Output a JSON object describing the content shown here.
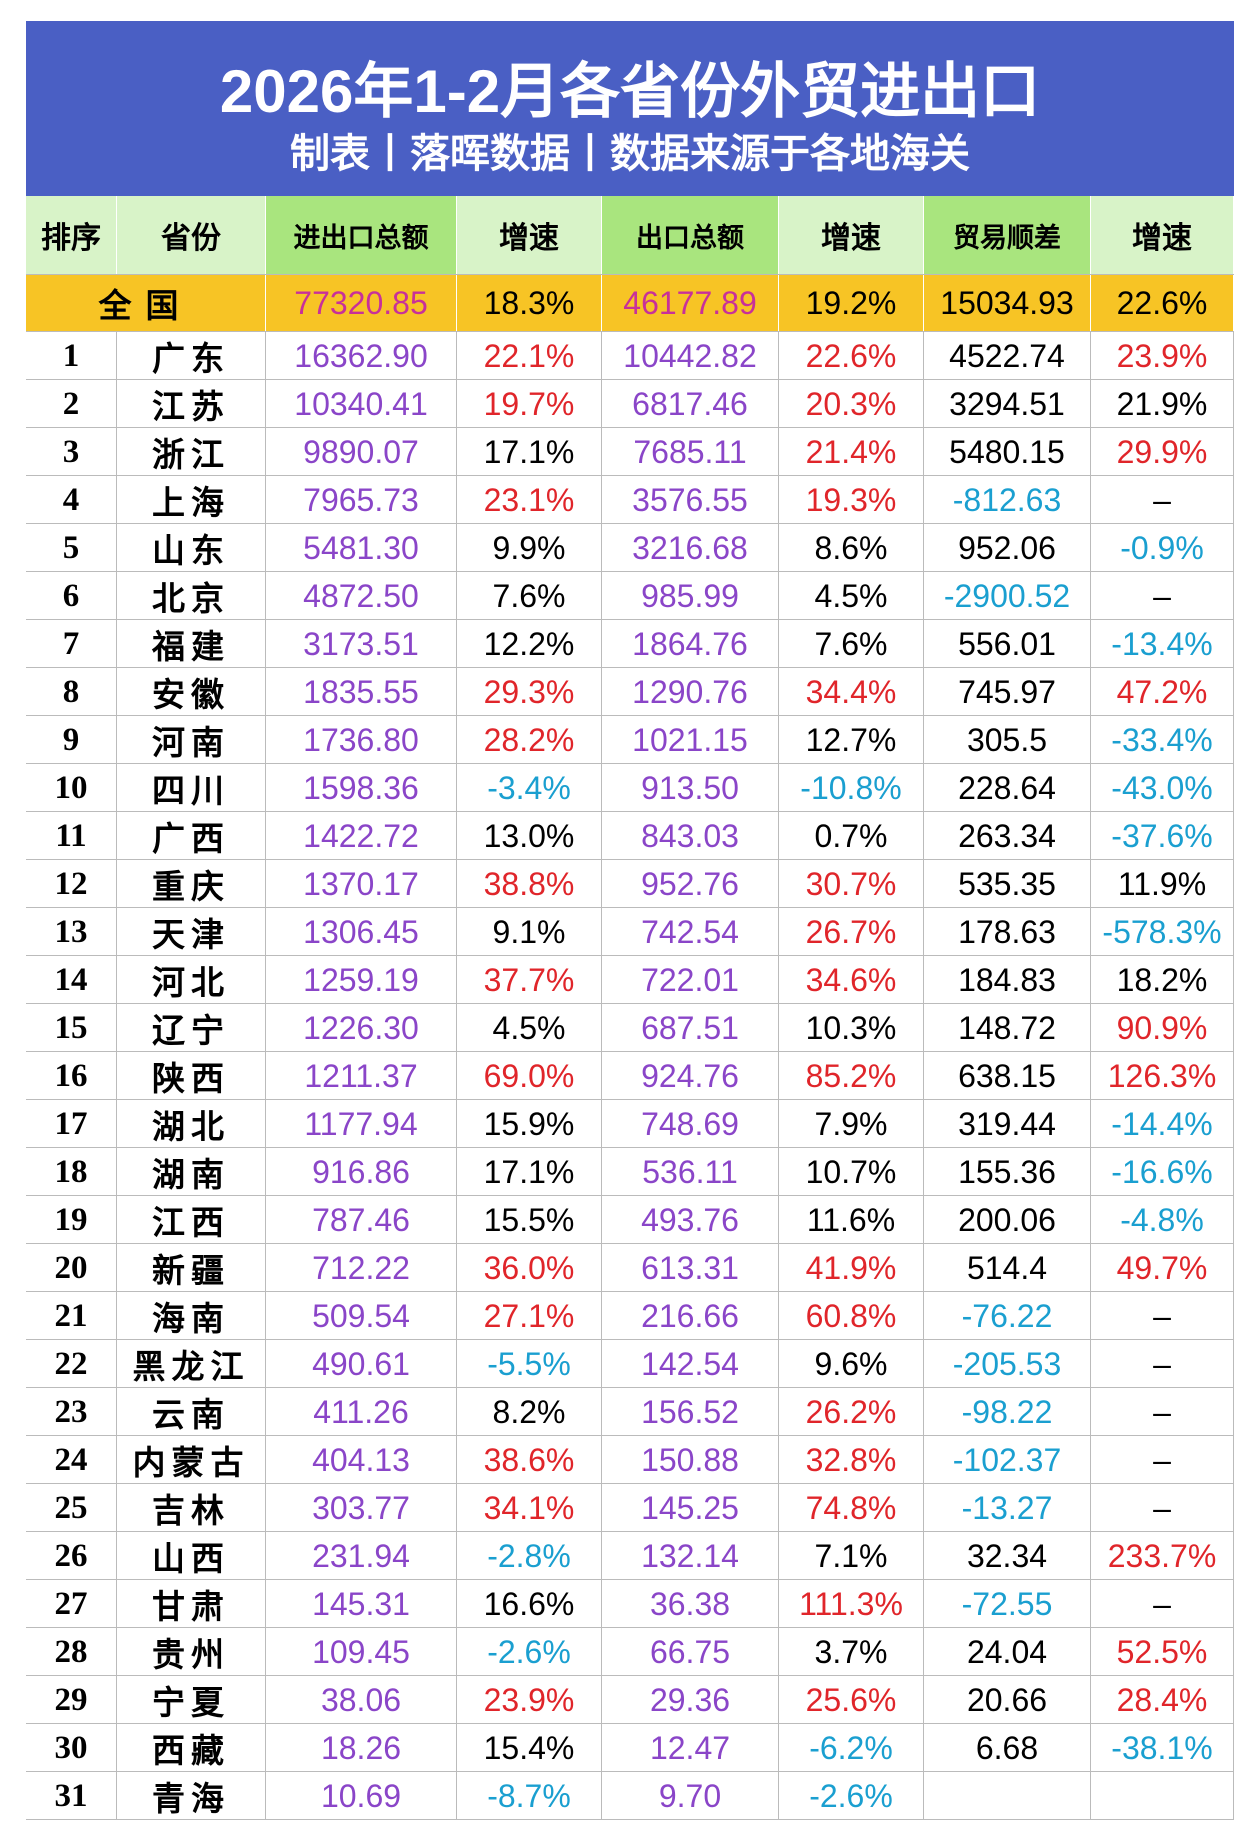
{
  "header": {
    "title": "2026年1-2月各省份外贸进出口",
    "subtitle": "制表丨落晖数据丨数据来源于各地海关"
  },
  "table": {
    "columns": [
      "排序",
      "省份",
      "进出口总额",
      "增速",
      "出口总额",
      "增速",
      "贸易顺差",
      "增速"
    ],
    "national": [
      "全国",
      "77320.85",
      "18.3%",
      "46177.89",
      "19.2%",
      "15034.93",
      "22.6%"
    ],
    "rows": [
      [
        "1",
        "广东",
        "16362.90",
        "22.1%",
        "10442.82",
        "22.6%",
        "4522.74",
        "23.9%"
      ],
      [
        "2",
        "江苏",
        "10340.41",
        "19.7%",
        "6817.46",
        "20.3%",
        "3294.51",
        "21.9%"
      ],
      [
        "3",
        "浙江",
        "9890.07",
        "17.1%",
        "7685.11",
        "21.4%",
        "5480.15",
        "29.9%"
      ],
      [
        "4",
        "上海",
        "7965.73",
        "23.1%",
        "3576.55",
        "19.3%",
        "-812.63",
        "–"
      ],
      [
        "5",
        "山东",
        "5481.30",
        "9.9%",
        "3216.68",
        "8.6%",
        "952.06",
        "-0.9%"
      ],
      [
        "6",
        "北京",
        "4872.50",
        "7.6%",
        "985.99",
        "4.5%",
        "-2900.52",
        "–"
      ],
      [
        "7",
        "福建",
        "3173.51",
        "12.2%",
        "1864.76",
        "7.6%",
        "556.01",
        "-13.4%"
      ],
      [
        "8",
        "安徽",
        "1835.55",
        "29.3%",
        "1290.76",
        "34.4%",
        "745.97",
        "47.2%"
      ],
      [
        "9",
        "河南",
        "1736.80",
        "28.2%",
        "1021.15",
        "12.7%",
        "305.5",
        "-33.4%"
      ],
      [
        "10",
        "四川",
        "1598.36",
        "-3.4%",
        "913.50",
        "-10.8%",
        "228.64",
        "-43.0%"
      ],
      [
        "11",
        "广西",
        "1422.72",
        "13.0%",
        "843.03",
        "0.7%",
        "263.34",
        "-37.6%"
      ],
      [
        "12",
        "重庆",
        "1370.17",
        "38.8%",
        "952.76",
        "30.7%",
        "535.35",
        "11.9%"
      ],
      [
        "13",
        "天津",
        "1306.45",
        "9.1%",
        "742.54",
        "26.7%",
        "178.63",
        "-578.3%"
      ],
      [
        "14",
        "河北",
        "1259.19",
        "37.7%",
        "722.01",
        "34.6%",
        "184.83",
        "18.2%"
      ],
      [
        "15",
        "辽宁",
        "1226.30",
        "4.5%",
        "687.51",
        "10.3%",
        "148.72",
        "90.9%"
      ],
      [
        "16",
        "陕西",
        "1211.37",
        "69.0%",
        "924.76",
        "85.2%",
        "638.15",
        "126.3%"
      ],
      [
        "17",
        "湖北",
        "1177.94",
        "15.9%",
        "748.69",
        "7.9%",
        "319.44",
        "-14.4%"
      ],
      [
        "18",
        "湖南",
        "916.86",
        "17.1%",
        "536.11",
        "10.7%",
        "155.36",
        "-16.6%"
      ],
      [
        "19",
        "江西",
        "787.46",
        "15.5%",
        "493.76",
        "11.6%",
        "200.06",
        "-4.8%"
      ],
      [
        "20",
        "新疆",
        "712.22",
        "36.0%",
        "613.31",
        "41.9%",
        "514.4",
        "49.7%"
      ],
      [
        "21",
        "海南",
        "509.54",
        "27.1%",
        "216.66",
        "60.8%",
        "-76.22",
        "–"
      ],
      [
        "22",
        "黑龙江",
        "490.61",
        "-5.5%",
        "142.54",
        "9.6%",
        "-205.53",
        "–"
      ],
      [
        "23",
        "云南",
        "411.26",
        "8.2%",
        "156.52",
        "26.2%",
        "-98.22",
        "–"
      ],
      [
        "24",
        "内蒙古",
        "404.13",
        "38.6%",
        "150.88",
        "32.8%",
        "-102.37",
        "–"
      ],
      [
        "25",
        "吉林",
        "303.77",
        "34.1%",
        "145.25",
        "74.8%",
        "-13.27",
        "–"
      ],
      [
        "26",
        "山西",
        "231.94",
        "-2.8%",
        "132.14",
        "7.1%",
        "32.34",
        "233.7%"
      ],
      [
        "27",
        "甘肃",
        "145.31",
        "16.6%",
        "36.38",
        "111.3%",
        "-72.55",
        "–"
      ],
      [
        "28",
        "贵州",
        "109.45",
        "-2.6%",
        "66.75",
        "3.7%",
        "24.04",
        "52.5%"
      ],
      [
        "29",
        "宁夏",
        "38.06",
        "23.9%",
        "29.36",
        "25.6%",
        "20.66",
        "28.4%"
      ],
      [
        "30",
        "西藏",
        "18.26",
        "15.4%",
        "12.47",
        "-6.2%",
        "6.68",
        "-38.1%"
      ],
      [
        "31",
        "青海",
        "10.69",
        "-8.7%",
        "9.70",
        "-2.6%",
        null,
        null
      ]
    ]
  }
}
